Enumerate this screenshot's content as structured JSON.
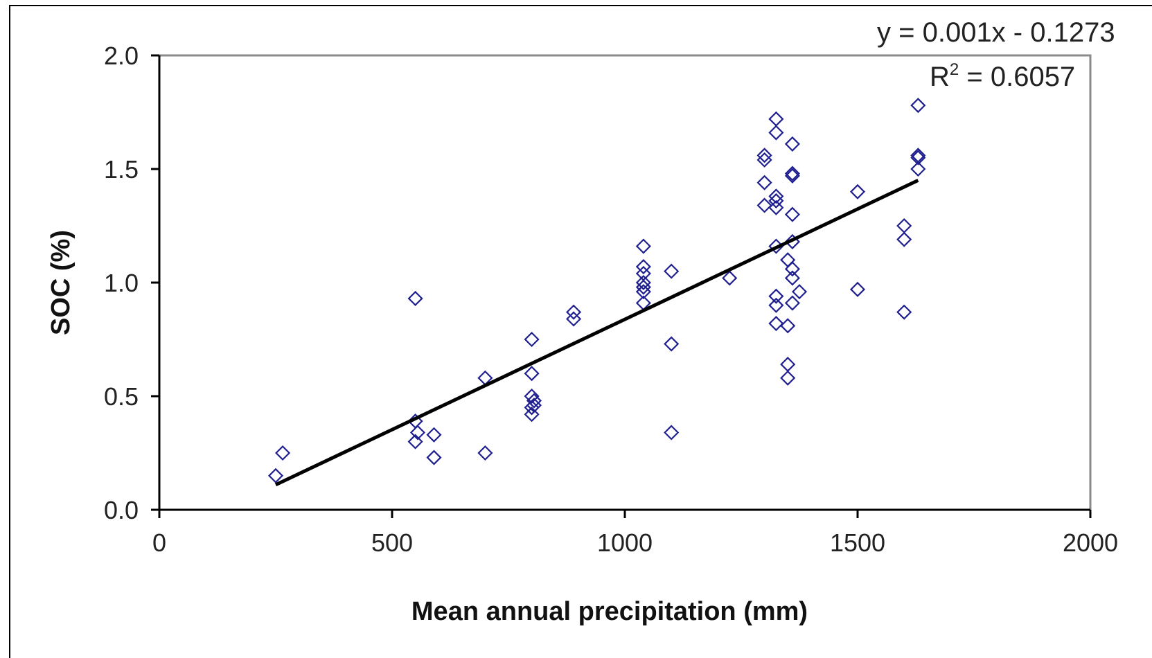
{
  "chart_data": {
    "type": "scatter",
    "xlabel": "Mean annual precipitation (mm)",
    "ylabel": "SOC (%)",
    "xlim": [
      0,
      2000
    ],
    "ylim": [
      0,
      2.0
    ],
    "x_ticks": [
      "0",
      "500",
      "1000",
      "1500",
      "2000"
    ],
    "y_ticks": [
      "0.0",
      "0.5",
      "1.0",
      "1.5",
      "2.0"
    ],
    "grid": false,
    "marker_color": "#1f1f8f",
    "trendline_color": "#000000",
    "equation": "y = 0.001x - 0.1273",
    "r_squared_label": "R",
    "r_squared_exp": "2",
    "r_squared_value": " = 0.6057",
    "trendline": {
      "x": [
        250,
        1630
      ],
      "y": [
        0.11,
        1.45
      ]
    },
    "points": [
      {
        "x": 250,
        "y": 0.15
      },
      {
        "x": 265,
        "y": 0.25
      },
      {
        "x": 550,
        "y": 0.93
      },
      {
        "x": 550,
        "y": 0.39
      },
      {
        "x": 550,
        "y": 0.3
      },
      {
        "x": 555,
        "y": 0.34
      },
      {
        "x": 590,
        "y": 0.33
      },
      {
        "x": 590,
        "y": 0.23
      },
      {
        "x": 700,
        "y": 0.58
      },
      {
        "x": 700,
        "y": 0.25
      },
      {
        "x": 800,
        "y": 0.75
      },
      {
        "x": 800,
        "y": 0.6
      },
      {
        "x": 800,
        "y": 0.5
      },
      {
        "x": 805,
        "y": 0.48
      },
      {
        "x": 800,
        "y": 0.45
      },
      {
        "x": 800,
        "y": 0.42
      },
      {
        "x": 805,
        "y": 0.46
      },
      {
        "x": 890,
        "y": 0.87
      },
      {
        "x": 890,
        "y": 0.84
      },
      {
        "x": 1040,
        "y": 1.16
      },
      {
        "x": 1040,
        "y": 1.07
      },
      {
        "x": 1040,
        "y": 1.04
      },
      {
        "x": 1040,
        "y": 1.0
      },
      {
        "x": 1040,
        "y": 0.98
      },
      {
        "x": 1040,
        "y": 0.96
      },
      {
        "x": 1040,
        "y": 0.91
      },
      {
        "x": 1100,
        "y": 1.05
      },
      {
        "x": 1100,
        "y": 0.73
      },
      {
        "x": 1100,
        "y": 0.34
      },
      {
        "x": 1225,
        "y": 1.02
      },
      {
        "x": 1300,
        "y": 1.56
      },
      {
        "x": 1300,
        "y": 1.54
      },
      {
        "x": 1300,
        "y": 1.44
      },
      {
        "x": 1300,
        "y": 1.34
      },
      {
        "x": 1325,
        "y": 1.72
      },
      {
        "x": 1325,
        "y": 1.66
      },
      {
        "x": 1325,
        "y": 1.38
      },
      {
        "x": 1325,
        "y": 1.36
      },
      {
        "x": 1325,
        "y": 1.33
      },
      {
        "x": 1325,
        "y": 1.16
      },
      {
        "x": 1325,
        "y": 0.94
      },
      {
        "x": 1325,
        "y": 0.9
      },
      {
        "x": 1325,
        "y": 0.82
      },
      {
        "x": 1350,
        "y": 1.1
      },
      {
        "x": 1350,
        "y": 0.81
      },
      {
        "x": 1350,
        "y": 0.64
      },
      {
        "x": 1350,
        "y": 0.58
      },
      {
        "x": 1360,
        "y": 1.61
      },
      {
        "x": 1360,
        "y": 1.48
      },
      {
        "x": 1360,
        "y": 1.47
      },
      {
        "x": 1360,
        "y": 1.3
      },
      {
        "x": 1360,
        "y": 1.18
      },
      {
        "x": 1360,
        "y": 1.06
      },
      {
        "x": 1360,
        "y": 1.02
      },
      {
        "x": 1360,
        "y": 0.91
      },
      {
        "x": 1375,
        "y": 0.96
      },
      {
        "x": 1500,
        "y": 1.4
      },
      {
        "x": 1500,
        "y": 0.97
      },
      {
        "x": 1600,
        "y": 1.25
      },
      {
        "x": 1600,
        "y": 1.19
      },
      {
        "x": 1600,
        "y": 0.87
      },
      {
        "x": 1630,
        "y": 1.78
      },
      {
        "x": 1630,
        "y": 1.56
      },
      {
        "x": 1630,
        "y": 1.55
      },
      {
        "x": 1630,
        "y": 1.5
      }
    ]
  }
}
